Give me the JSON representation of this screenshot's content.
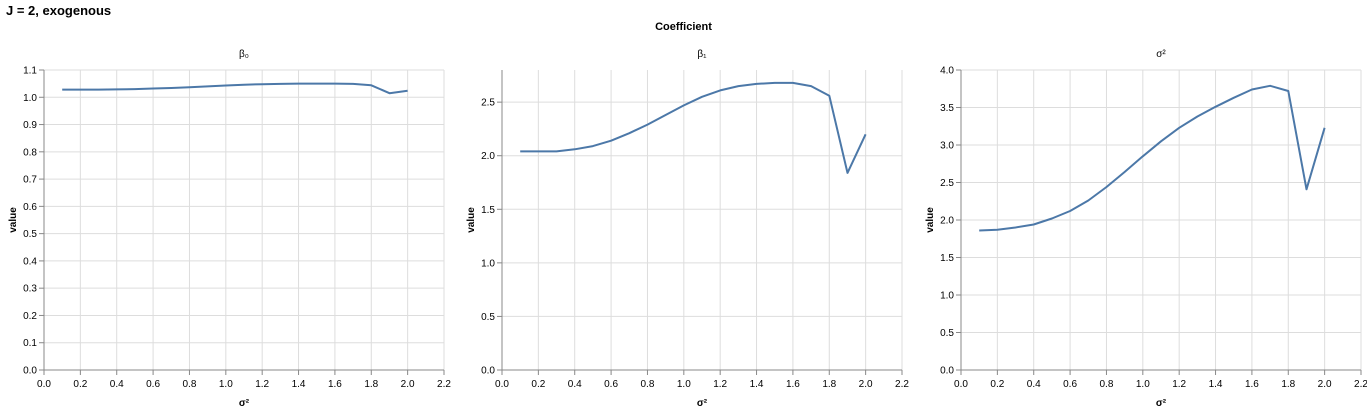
{
  "title": "J = 2, exogenous",
  "facet_header": "Coefficient",
  "chart_data": [
    {
      "type": "line",
      "title": "β₀",
      "xlabel": "σ²",
      "ylabel": "value",
      "xlim": [
        0,
        2.2
      ],
      "ylim": [
        0,
        1.1
      ],
      "xticks": [
        "0.0",
        "0.2",
        "0.4",
        "0.6",
        "0.8",
        "1.0",
        "1.2",
        "1.4",
        "1.6",
        "1.8",
        "2.0",
        "2.2"
      ],
      "yticks": [
        "0.0",
        "0.1",
        "0.2",
        "0.3",
        "0.4",
        "0.5",
        "0.6",
        "0.7",
        "0.8",
        "0.9",
        "1.0",
        "1.1"
      ],
      "grid": true,
      "color": "#4c78a8",
      "series": [
        {
          "x": [
            0.1,
            0.2,
            0.3,
            0.4,
            0.5,
            0.6,
            0.7,
            0.8,
            0.9,
            1.0,
            1.1,
            1.2,
            1.3,
            1.4,
            1.5,
            1.6,
            1.7,
            1.8,
            1.9,
            2.0
          ],
          "y": [
            1.028,
            1.028,
            1.028,
            1.029,
            1.03,
            1.032,
            1.034,
            1.037,
            1.04,
            1.043,
            1.046,
            1.048,
            1.049,
            1.05,
            1.05,
            1.05,
            1.049,
            1.044,
            1.015,
            1.024
          ]
        }
      ]
    },
    {
      "type": "line",
      "title": "β₁",
      "xlabel": "σ²",
      "ylabel": "value",
      "xlim": [
        0,
        2.2
      ],
      "ylim": [
        0,
        2.8
      ],
      "xticks": [
        "0.0",
        "0.2",
        "0.4",
        "0.6",
        "0.8",
        "1.0",
        "1.2",
        "1.4",
        "1.6",
        "1.8",
        "2.0",
        "2.2"
      ],
      "yticks": [
        "0.0",
        "0.5",
        "1.0",
        "1.5",
        "2.0",
        "2.5"
      ],
      "grid": true,
      "color": "#4c78a8",
      "series": [
        {
          "x": [
            0.1,
            0.2,
            0.3,
            0.4,
            0.5,
            0.6,
            0.7,
            0.8,
            0.9,
            1.0,
            1.1,
            1.2,
            1.3,
            1.4,
            1.5,
            1.6,
            1.7,
            1.8,
            1.9,
            2.0
          ],
          "y": [
            2.04,
            2.04,
            2.04,
            2.06,
            2.09,
            2.14,
            2.21,
            2.29,
            2.38,
            2.47,
            2.55,
            2.61,
            2.65,
            2.67,
            2.68,
            2.68,
            2.65,
            2.56,
            1.84,
            2.2
          ]
        }
      ]
    },
    {
      "type": "line",
      "title": "σ²",
      "xlabel": "σ²",
      "ylabel": "value",
      "xlim": [
        0,
        2.2
      ],
      "ylim": [
        0,
        4.0
      ],
      "xticks": [
        "0.0",
        "0.2",
        "0.4",
        "0.6",
        "0.8",
        "1.0",
        "1.2",
        "1.4",
        "1.6",
        "1.8",
        "2.0",
        "2.2"
      ],
      "yticks": [
        "0.0",
        "0.5",
        "1.0",
        "1.5",
        "2.0",
        "2.5",
        "3.0",
        "3.5",
        "4.0"
      ],
      "grid": true,
      "color": "#4c78a8",
      "series": [
        {
          "x": [
            0.1,
            0.2,
            0.3,
            0.4,
            0.5,
            0.6,
            0.7,
            0.8,
            0.9,
            1.0,
            1.1,
            1.2,
            1.3,
            1.4,
            1.5,
            1.6,
            1.7,
            1.8,
            1.9,
            2.0
          ],
          "y": [
            1.86,
            1.87,
            1.9,
            1.94,
            2.02,
            2.12,
            2.26,
            2.44,
            2.64,
            2.85,
            3.05,
            3.23,
            3.38,
            3.51,
            3.63,
            3.74,
            3.79,
            3.72,
            2.41,
            3.23
          ]
        }
      ]
    }
  ]
}
